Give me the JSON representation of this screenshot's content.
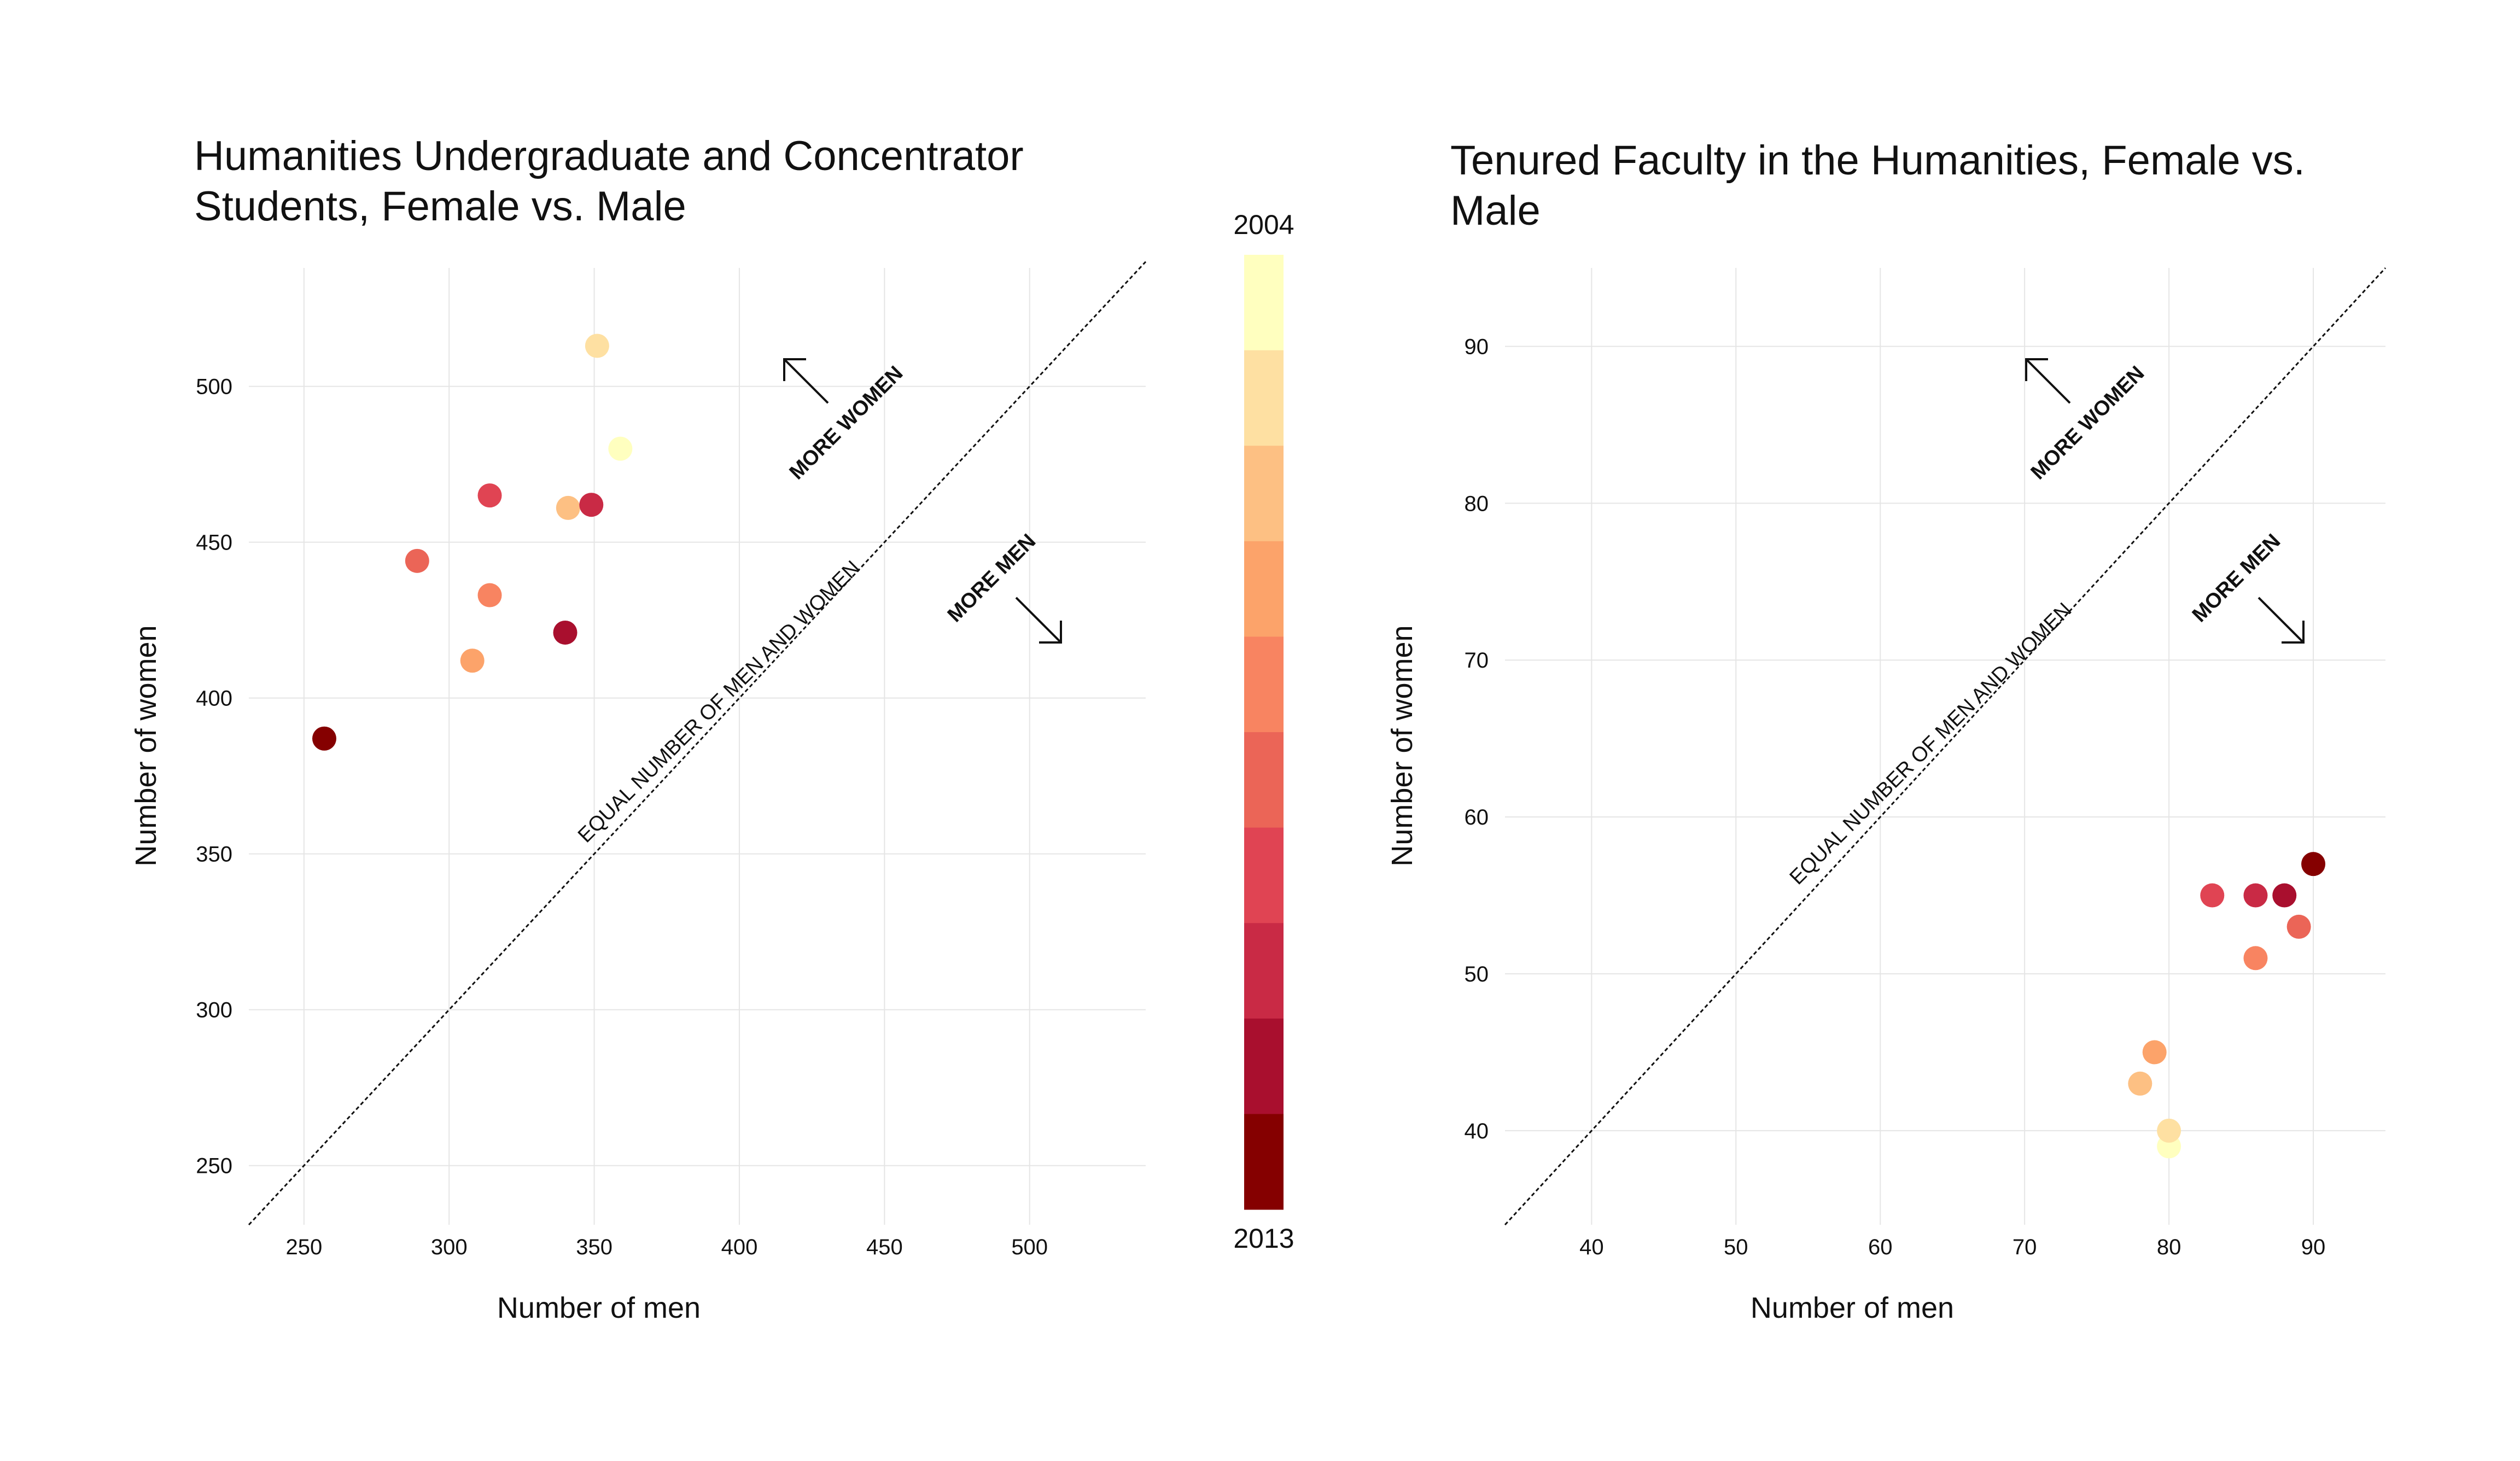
{
  "colors": {
    "scale": [
      "#ffffbf",
      "#fee0a2",
      "#fdc083",
      "#fca36a",
      "#f88461",
      "#eb6557",
      "#e04453",
      "#c92a45",
      "#a90f2e",
      "#850000"
    ],
    "grid": "#e5e5e5",
    "text": "#111111"
  },
  "colorbar": {
    "top_label": "2004",
    "bottom_label": "2013"
  },
  "chart_data": [
    {
      "type": "scatter",
      "title": "Humanities Undergraduate and Concentrator\nStudents, Female vs. Male",
      "xlabel": "Number of men",
      "ylabel": "Number of women",
      "xlim": [
        231,
        540
      ],
      "ylim": [
        231,
        538
      ],
      "xticks": [
        250,
        300,
        350,
        400,
        450,
        500
      ],
      "yticks": [
        250,
        300,
        350,
        400,
        450,
        500
      ],
      "grid": true,
      "points": [
        {
          "x": 359,
          "y": 480,
          "year_index": 0
        },
        {
          "x": 351,
          "y": 513,
          "year_index": 1
        },
        {
          "x": 341,
          "y": 461,
          "year_index": 2
        },
        {
          "x": 308,
          "y": 412,
          "year_index": 3
        },
        {
          "x": 314,
          "y": 433,
          "year_index": 4
        },
        {
          "x": 289,
          "y": 444,
          "year_index": 5
        },
        {
          "x": 314,
          "y": 465,
          "year_index": 6
        },
        {
          "x": 349,
          "y": 462,
          "year_index": 7
        },
        {
          "x": 340,
          "y": 421,
          "year_index": 8
        },
        {
          "x": 257,
          "y": 387,
          "year_index": 9
        }
      ],
      "annotations": {
        "diagonal": "EQUAL NUMBER OF MEN AND WOMEN",
        "more_women": "MORE WOMEN",
        "more_men": "MORE MEN"
      }
    },
    {
      "type": "scatter",
      "title": "Tenured Faculty in the Humanities, Female vs.\nMale",
      "xlabel": "Number of men",
      "ylabel": "Number of women",
      "xlim": [
        34,
        95
      ],
      "ylim": [
        34,
        95
      ],
      "xticks": [
        40,
        50,
        60,
        70,
        80,
        90
      ],
      "yticks": [
        40,
        50,
        60,
        70,
        80,
        90
      ],
      "grid": true,
      "points": [
        {
          "x": 80,
          "y": 39,
          "year_index": 0
        },
        {
          "x": 80,
          "y": 40,
          "year_index": 1
        },
        {
          "x": 78,
          "y": 43,
          "year_index": 2
        },
        {
          "x": 79,
          "y": 45,
          "year_index": 3
        },
        {
          "x": 86,
          "y": 51,
          "year_index": 4
        },
        {
          "x": 89,
          "y": 53,
          "year_index": 5
        },
        {
          "x": 83,
          "y": 55,
          "year_index": 6
        },
        {
          "x": 86,
          "y": 55,
          "year_index": 7
        },
        {
          "x": 88,
          "y": 55,
          "year_index": 8
        },
        {
          "x": 90,
          "y": 57,
          "year_index": 9
        }
      ],
      "annotations": {
        "diagonal": "EQUAL NUMBER OF MEN AND WOMEN",
        "more_women": "MORE WOMEN",
        "more_men": "MORE MEN"
      }
    }
  ]
}
